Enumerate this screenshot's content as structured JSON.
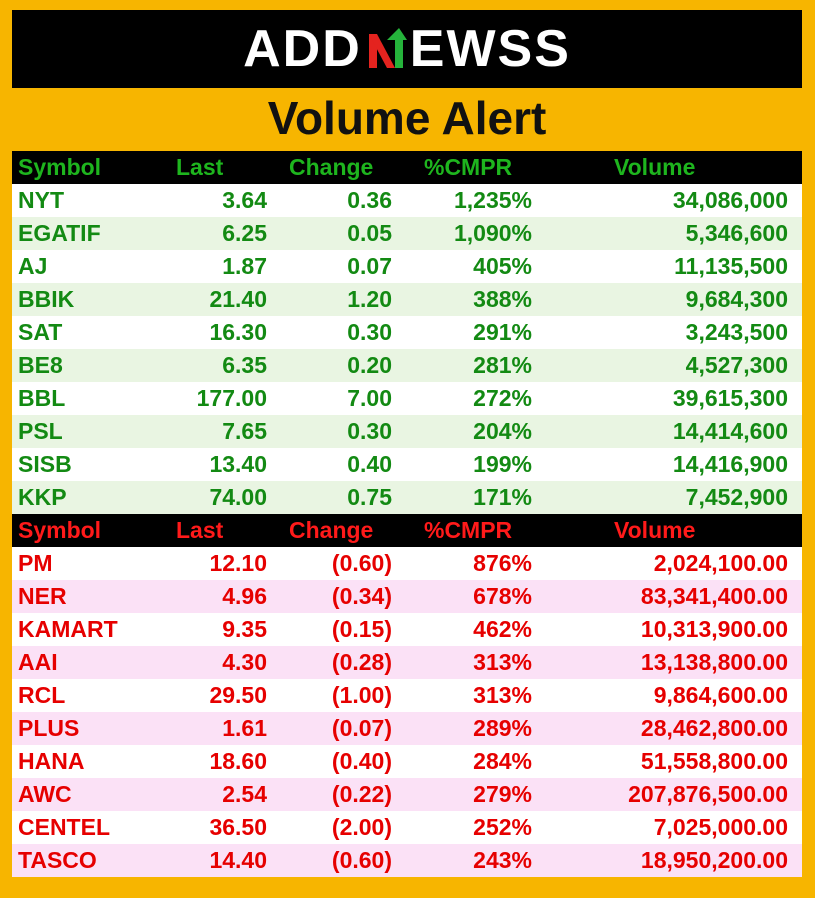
{
  "logo": {
    "before": "ADD",
    "after": "EWSS"
  },
  "title": "Volume Alert",
  "colors": {
    "background": "#f7b500",
    "gain": "#138a13",
    "loss": "#e60000",
    "header_bg": "#000000"
  },
  "columns": {
    "symbol": "Symbol",
    "last": "Last",
    "change": "Change",
    "pct": "%CMPR",
    "volume": "Volume"
  },
  "gainers": [
    {
      "symbol": "NYT",
      "last": "3.64",
      "change": "0.36",
      "pct": "1,235%",
      "volume": "34,086,000"
    },
    {
      "symbol": "EGATIF",
      "last": "6.25",
      "change": "0.05",
      "pct": "1,090%",
      "volume": "5,346,600"
    },
    {
      "symbol": "AJ",
      "last": "1.87",
      "change": "0.07",
      "pct": "405%",
      "volume": "11,135,500"
    },
    {
      "symbol": "BBIK",
      "last": "21.40",
      "change": "1.20",
      "pct": "388%",
      "volume": "9,684,300"
    },
    {
      "symbol": "SAT",
      "last": "16.30",
      "change": "0.30",
      "pct": "291%",
      "volume": "3,243,500"
    },
    {
      "symbol": "BE8",
      "last": "6.35",
      "change": "0.20",
      "pct": "281%",
      "volume": "4,527,300"
    },
    {
      "symbol": "BBL",
      "last": "177.00",
      "change": "7.00",
      "pct": "272%",
      "volume": "39,615,300"
    },
    {
      "symbol": "PSL",
      "last": "7.65",
      "change": "0.30",
      "pct": "204%",
      "volume": "14,414,600"
    },
    {
      "symbol": "SISB",
      "last": "13.40",
      "change": "0.40",
      "pct": "199%",
      "volume": "14,416,900"
    },
    {
      "symbol": "KKP",
      "last": "74.00",
      "change": "0.75",
      "pct": "171%",
      "volume": "7,452,900"
    }
  ],
  "losers": [
    {
      "symbol": "PM",
      "last": "12.10",
      "change": "(0.60)",
      "pct": "876%",
      "volume": "2,024,100.00"
    },
    {
      "symbol": "NER",
      "last": "4.96",
      "change": "(0.34)",
      "pct": "678%",
      "volume": "83,341,400.00"
    },
    {
      "symbol": "KAMART",
      "last": "9.35",
      "change": "(0.15)",
      "pct": "462%",
      "volume": "10,313,900.00"
    },
    {
      "symbol": "AAI",
      "last": "4.30",
      "change": "(0.28)",
      "pct": "313%",
      "volume": "13,138,800.00"
    },
    {
      "symbol": "RCL",
      "last": "29.50",
      "change": "(1.00)",
      "pct": "313%",
      "volume": "9,864,600.00"
    },
    {
      "symbol": "PLUS",
      "last": "1.61",
      "change": "(0.07)",
      "pct": "289%",
      "volume": "28,462,800.00"
    },
    {
      "symbol": "HANA",
      "last": "18.60",
      "change": "(0.40)",
      "pct": "284%",
      "volume": "51,558,800.00"
    },
    {
      "symbol": "AWC",
      "last": "2.54",
      "change": "(0.22)",
      "pct": "279%",
      "volume": "207,876,500.00"
    },
    {
      "symbol": "CENTEL",
      "last": "36.50",
      "change": "(2.00)",
      "pct": "252%",
      "volume": "7,025,000.00"
    },
    {
      "symbol": "TASCO",
      "last": "14.40",
      "change": "(0.60)",
      "pct": "243%",
      "volume": "18,950,200.00"
    }
  ]
}
